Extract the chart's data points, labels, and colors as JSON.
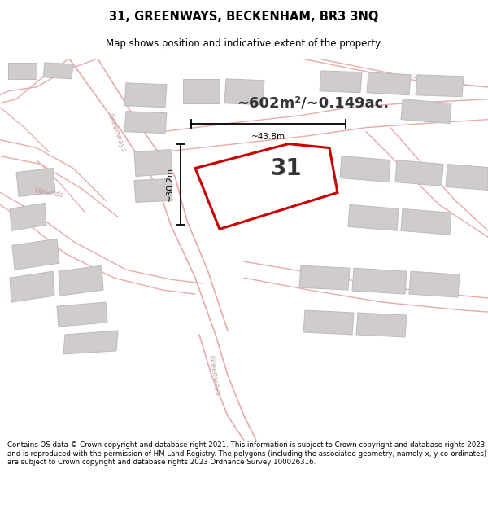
{
  "title": "31, GREENWAYS, BECKENHAM, BR3 3NQ",
  "subtitle": "Map shows position and indicative extent of the property.",
  "area_text": "~602m²/~0.149ac.",
  "property_number": "31",
  "dim_vertical": "~30.2m",
  "dim_horizontal": "~43.8m",
  "footer": "Contains OS data © Crown copyright and database right 2021. This information is subject to Crown copyright and database rights 2023 and is reproduced with the permission of HM Land Registry. The polygons (including the associated geometry, namely x, y co-ordinates) are subject to Crown copyright and database rights 2023 Ordnance Survey 100026316.",
  "map_bg": "#f7f3f3",
  "road_line_color": "#e8aaaa",
  "building_color": "#d0cccc",
  "building_edge": "#bbbbbb",
  "property_fill": "#ffffff",
  "property_edge": "#cc0000",
  "street_label_color": "#c0a0a0",
  "dim_color": "#000000",
  "title_color": "#000000",
  "footer_color": "#000000",
  "area_text_color": "#333333"
}
